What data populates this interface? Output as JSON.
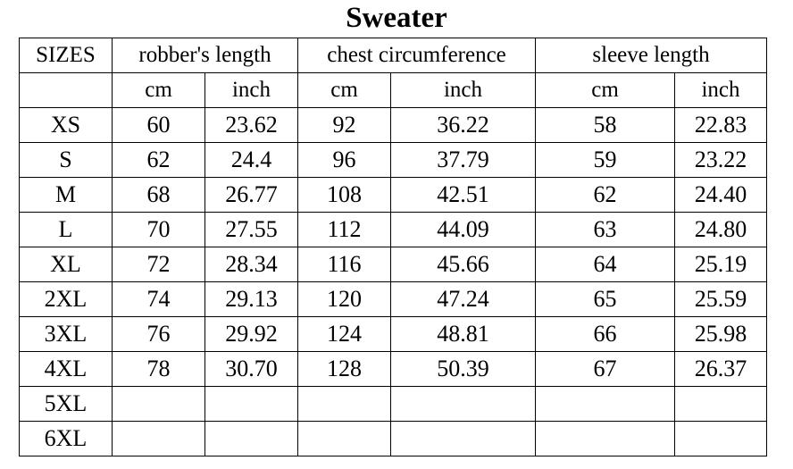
{
  "title": "Sweater",
  "header": {
    "sizes": "SIZES",
    "groups": [
      "robber's length",
      "chest circumference",
      "sleeve length"
    ],
    "units": [
      "cm",
      "inch",
      "cm",
      "inch",
      "cm",
      "inch"
    ]
  },
  "rows": [
    {
      "size": "XS",
      "values": [
        "60",
        "23.62",
        "92",
        "36.22",
        "58",
        "22.83"
      ]
    },
    {
      "size": "S",
      "values": [
        "62",
        "24.4",
        "96",
        "37.79",
        "59",
        "23.22"
      ]
    },
    {
      "size": "M",
      "values": [
        "68",
        "26.77",
        "108",
        "42.51",
        "62",
        "24.40"
      ]
    },
    {
      "size": "L",
      "values": [
        "70",
        "27.55",
        "112",
        "44.09",
        "63",
        "24.80"
      ]
    },
    {
      "size": "XL",
      "values": [
        "72",
        "28.34",
        "116",
        "45.66",
        "64",
        "25.19"
      ]
    },
    {
      "size": "2XL",
      "values": [
        "74",
        "29.13",
        "120",
        "47.24",
        "65",
        "25.59"
      ]
    },
    {
      "size": "3XL",
      "values": [
        "76",
        "29.92",
        "124",
        "48.81",
        "66",
        "25.98"
      ]
    },
    {
      "size": "4XL",
      "values": [
        "78",
        "30.70",
        "128",
        "50.39",
        "67",
        "26.37"
      ]
    },
    {
      "size": "5XL",
      "values": [
        "",
        "",
        "",
        "",
        "",
        ""
      ]
    },
    {
      "size": "6XL",
      "values": [
        "",
        "",
        "",
        "",
        "",
        ""
      ]
    }
  ]
}
